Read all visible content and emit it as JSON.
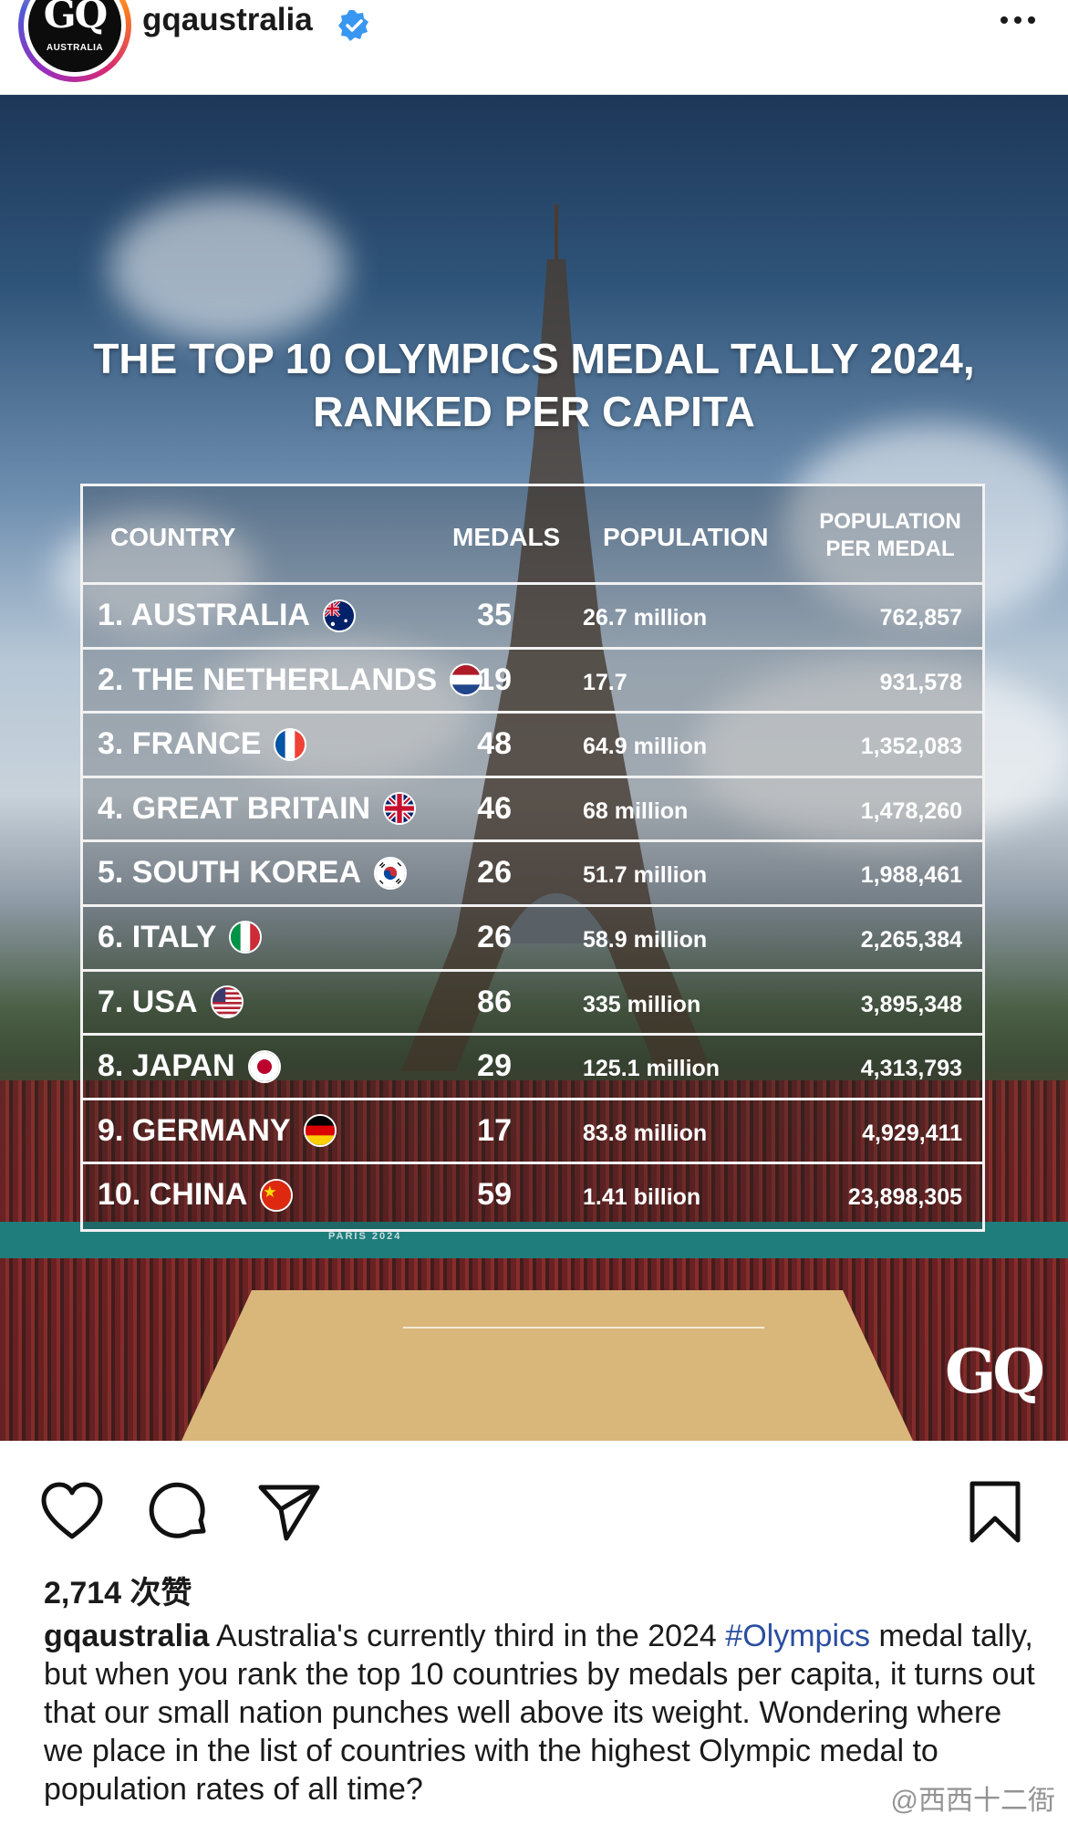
{
  "header": {
    "username": "gqaustralia",
    "avatar_text": "GQ",
    "avatar_subtext": "AUSTRALIA",
    "verified_icon": "verified-badge-icon",
    "more_icon": "more-options-icon"
  },
  "post": {
    "title_line1": "THE TOP 10 OLYMPICS MEDAL TALLY 2024,",
    "title_line2": "RANKED PER CAPITA",
    "table": {
      "headers": {
        "country": "COUNTRY",
        "medals": "MEDALS",
        "population": "POPULATION",
        "per_medal_line1": "POPULATION",
        "per_medal_line2": "PER MEDAL"
      },
      "rows": [
        {
          "country": "1. AUSTRALIA",
          "flag": "australia-flag-icon",
          "medals": "35",
          "population": "26.7 million",
          "per_medal": "762,857"
        },
        {
          "country": "2. THE NETHERLANDS",
          "flag": "netherlands-flag-icon",
          "medals": "19",
          "population": "17.7",
          "per_medal": "931,578"
        },
        {
          "country": "3. FRANCE",
          "flag": "france-flag-icon",
          "medals": "48",
          "population": "64.9 million",
          "per_medal": "1,352,083"
        },
        {
          "country": "4. GREAT BRITAIN",
          "flag": "uk-flag-icon",
          "medals": "46",
          "population": "68 million",
          "per_medal": "1,478,260"
        },
        {
          "country": "5. SOUTH KOREA",
          "flag": "south-korea-flag-icon",
          "medals": "26",
          "population": "51.7 million",
          "per_medal": "1,988,461"
        },
        {
          "country": "6. ITALY",
          "flag": "italy-flag-icon",
          "medals": "26",
          "population": "58.9 million",
          "per_medal": "2,265,384"
        },
        {
          "country": "7. USA",
          "flag": "usa-flag-icon",
          "medals": "86",
          "population": "335 million",
          "per_medal": "3,895,348"
        },
        {
          "country": "8. JAPAN",
          "flag": "japan-flag-icon",
          "medals": "29",
          "population": "125.1 million",
          "per_medal": "4,313,793"
        },
        {
          "country": "9. GERMANY",
          "flag": "germany-flag-icon",
          "medals": "17",
          "population": "83.8 million",
          "per_medal": "4,929,411"
        },
        {
          "country": "10. CHINA",
          "flag": "china-flag-icon",
          "medals": "59",
          "population": "1.41 billion",
          "per_medal": "23,898,305"
        }
      ]
    },
    "image_logo": "GQ",
    "court_banner": "PARIS 2024"
  },
  "actions": {
    "like_icon": "heart-icon",
    "comment_icon": "comment-icon",
    "share_icon": "send-icon",
    "save_icon": "bookmark-icon"
  },
  "likes": "2,714 次赞",
  "caption": {
    "username": "gqaustralia",
    "text_before_tag": " Australia's currently third in the 2024 ",
    "hashtag": "#Olympics",
    "text_after_tag": " medal tally, but when you rank the top 10 countries by medals per capita, it turns out that our small nation punches well above its weight. Wondering where we place in the list of countries with the highest Olympic medal to population rates of all time?"
  },
  "watermark": "@西西十二衙",
  "colors": {
    "link": "#2a4ea0",
    "text": "#1a1a1a"
  }
}
